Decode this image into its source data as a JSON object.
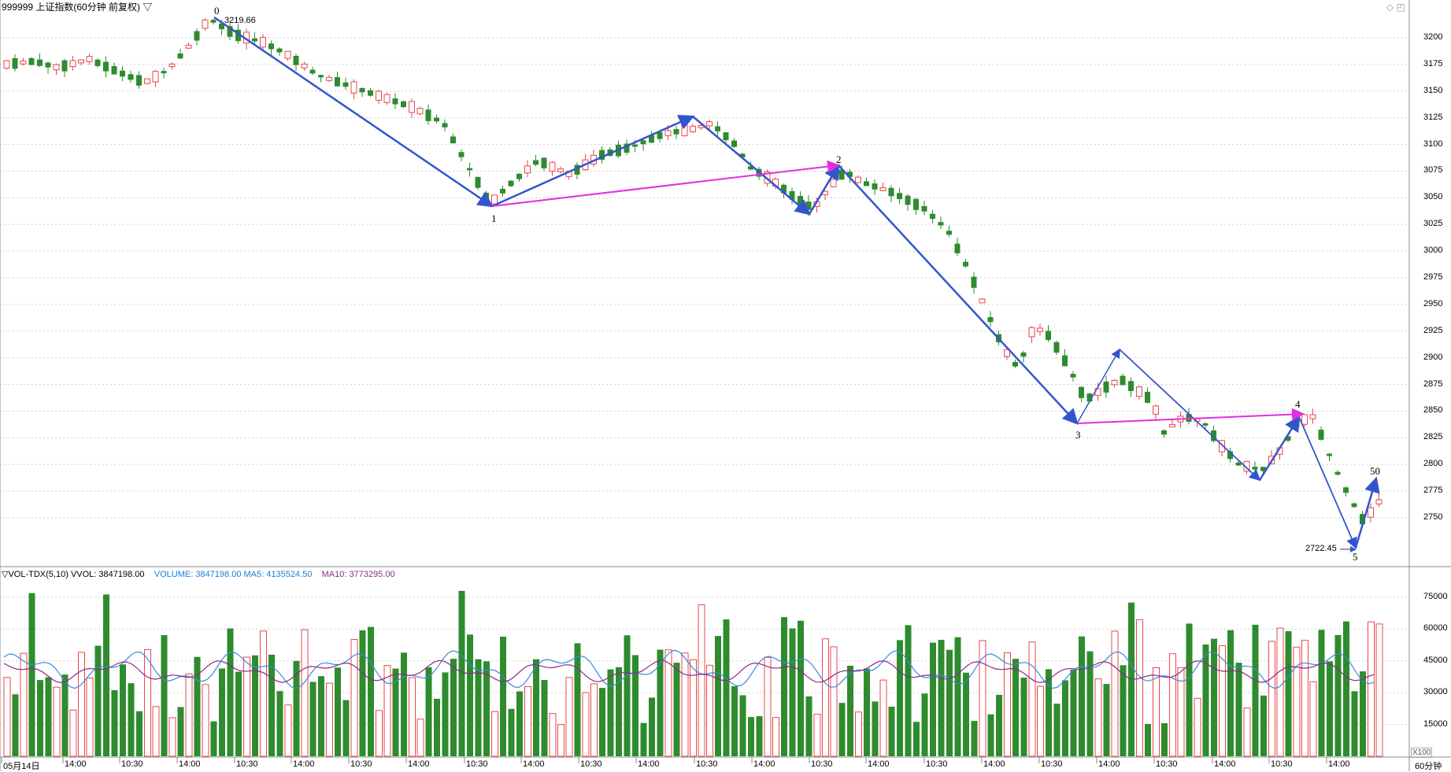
{
  "header": {
    "title": "999999 上证指数(60分钟 前复权) ▽",
    "window_icons": [
      "◇",
      "◰"
    ]
  },
  "price_panel": {
    "y_ticks": [
      "3200",
      "3175",
      "3150",
      "3125",
      "3100",
      "3075",
      "3050",
      "3025",
      "3000",
      "2975",
      "2950",
      "2925",
      "2900",
      "2875",
      "2850",
      "2825",
      "2800",
      "2775",
      "2750"
    ],
    "high_label": "3219.66",
    "low_label": "2722.45",
    "wave_labels": [
      "0",
      "1",
      "2",
      "3",
      "4",
      "5",
      "50"
    ]
  },
  "volume_panel": {
    "legend": {
      "name": "▽VOL-TDX(5,10)",
      "vvol": "VVOL: 3847198.00",
      "volume": "VOLUME: 3847198.00",
      "ma5": "MA5: 4135524.50",
      "ma10": "MA10: 3773295.00"
    },
    "y_ticks": [
      "75000",
      "60000",
      "45000",
      "30000",
      "15000"
    ],
    "unit": "X100"
  },
  "time_axis": {
    "labels": [
      "05月14日",
      "14:00",
      "10:30",
      "14:00",
      "10:30",
      "14:00",
      "10:30",
      "14:00",
      "10:30",
      "14:00",
      "10:30",
      "14:00",
      "10:30",
      "14:00",
      "10:30",
      "14:00",
      "10:30",
      "14:00",
      "10:30",
      "14:00",
      "10:30",
      "14:00",
      "10:30",
      "14:00"
    ],
    "period": "60分钟"
  },
  "colors": {
    "up": "#e8474b",
    "down": "#2e8b2e",
    "wave_blue": "#3355cc",
    "wave_magenta": "#e22ee2",
    "ma5": "#3b8bd8",
    "ma10": "#8b2a8b"
  }
}
